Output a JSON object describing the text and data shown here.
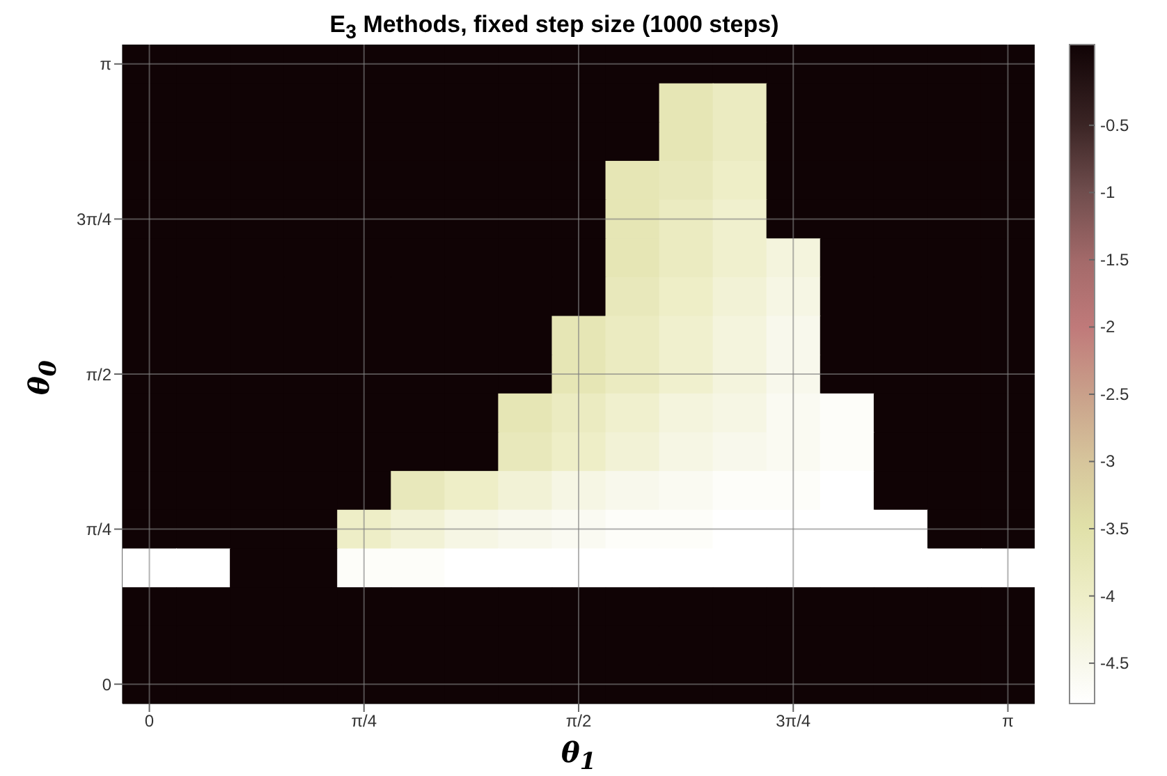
{
  "chart_data": {
    "type": "heatmap",
    "title": "E$_{3}$ Methods, fixed step size (1000 steps)",
    "xlabel": "θ$_{1}$",
    "ylabel": "θ$_{0}$",
    "categories": [
      "0",
      null,
      null,
      null,
      "π/4",
      null,
      null,
      null,
      "π/2",
      null,
      null,
      null,
      "3π/4",
      null,
      null,
      null,
      "π"
    ],
    "y_categories": [
      "π",
      null,
      null,
      null,
      "3π/4",
      null,
      null,
      null,
      "π/2",
      null,
      null,
      null,
      "π/4",
      null,
      null,
      null,
      "0"
    ],
    "clim": [
      -4.8,
      0.1
    ],
    "cticks": [
      -4.5,
      -4,
      -3.5,
      -3,
      -2.5,
      -2,
      -1.5,
      -1,
      -0.5
    ],
    "grid": true,
    "cells": [
      [
        0.1,
        0.1,
        0.1,
        0.1,
        0.1,
        0.1,
        0.1,
        0.1,
        0.1,
        0.1,
        0.1,
        0.1,
        0.1,
        0.1,
        0.1,
        0.1,
        0.1
      ],
      [
        0.1,
        0.1,
        0.1,
        0.1,
        0.1,
        0.1,
        0.1,
        0.1,
        0.1,
        0.1,
        -3.7,
        -3.9,
        0.1,
        0.1,
        0.1,
        0.1,
        0.1
      ],
      [
        0.1,
        0.1,
        0.1,
        0.1,
        0.1,
        0.1,
        0.1,
        0.1,
        0.1,
        0.1,
        -3.7,
        -3.9,
        0.1,
        0.1,
        0.1,
        0.1,
        0.1
      ],
      [
        0.1,
        0.1,
        0.1,
        0.1,
        0.1,
        0.1,
        0.1,
        0.1,
        0.1,
        -3.7,
        -3.8,
        -4.0,
        0.1,
        0.1,
        0.1,
        0.1,
        0.1
      ],
      [
        0.1,
        0.1,
        0.1,
        0.1,
        0.1,
        0.1,
        0.1,
        0.1,
        0.1,
        -3.7,
        -3.9,
        -4.1,
        0.1,
        0.1,
        0.1,
        0.1,
        0.1
      ],
      [
        0.1,
        0.1,
        0.1,
        0.1,
        0.1,
        0.1,
        0.1,
        0.1,
        0.1,
        -3.7,
        -3.9,
        -4.1,
        -4.3,
        0.1,
        0.1,
        0.1,
        0.1
      ],
      [
        0.1,
        0.1,
        0.1,
        0.1,
        0.1,
        0.1,
        0.1,
        0.1,
        0.1,
        -3.8,
        -4.0,
        -4.2,
        -4.4,
        0.1,
        0.1,
        0.1,
        0.1
      ],
      [
        0.1,
        0.1,
        0.1,
        0.1,
        0.1,
        0.1,
        0.1,
        0.1,
        -3.7,
        -3.9,
        -4.1,
        -4.3,
        -4.5,
        0.1,
        0.1,
        0.1,
        0.1
      ],
      [
        0.1,
        0.1,
        0.1,
        0.1,
        0.1,
        0.1,
        0.1,
        0.1,
        -3.7,
        -3.9,
        -4.1,
        -4.3,
        -4.5,
        0.1,
        0.1,
        0.1,
        0.1
      ],
      [
        0.1,
        0.1,
        0.1,
        0.1,
        0.1,
        0.1,
        0.1,
        -3.7,
        -3.9,
        -4.1,
        -4.3,
        -4.4,
        -4.6,
        -4.7,
        0.1,
        0.1,
        0.1
      ],
      [
        0.1,
        0.1,
        0.1,
        0.1,
        0.1,
        0.1,
        0.1,
        -3.8,
        -4.0,
        -4.2,
        -4.4,
        -4.5,
        -4.6,
        -4.7,
        0.1,
        0.1,
        0.1
      ],
      [
        0.1,
        0.1,
        0.1,
        0.1,
        0.1,
        -3.8,
        -4.0,
        -4.2,
        -4.4,
        -4.5,
        -4.6,
        -4.7,
        -4.7,
        -4.8,
        0.1,
        0.1,
        0.1
      ],
      [
        0.1,
        0.1,
        0.1,
        0.1,
        -4.0,
        -4.2,
        -4.4,
        -4.5,
        -4.6,
        -4.7,
        -4.7,
        -4.8,
        -4.8,
        -4.8,
        -4.8,
        0.1,
        0.1
      ],
      [
        -4.8,
        -4.8,
        0.1,
        0.1,
        -4.7,
        -4.7,
        -4.8,
        -4.8,
        -4.8,
        -4.8,
        -4.8,
        -4.8,
        -4.8,
        -4.8,
        -4.8,
        -4.8,
        -4.8
      ],
      [
        0.1,
        0.1,
        0.1,
        0.1,
        0.1,
        0.1,
        0.1,
        0.1,
        0.1,
        0.1,
        0.1,
        0.1,
        0.1,
        0.1,
        0.1,
        0.1,
        0.1
      ],
      [
        0.1,
        0.1,
        0.1,
        0.1,
        0.1,
        0.1,
        0.1,
        0.1,
        0.1,
        0.1,
        0.1,
        0.1,
        0.1,
        0.1,
        0.1,
        0.1,
        0.1
      ],
      [
        0.1,
        0.1,
        0.1,
        0.1,
        0.1,
        0.1,
        0.1,
        0.1,
        0.1,
        0.1,
        0.1,
        0.1,
        0.1,
        0.1,
        0.1,
        0.1,
        0.1
      ]
    ]
  }
}
